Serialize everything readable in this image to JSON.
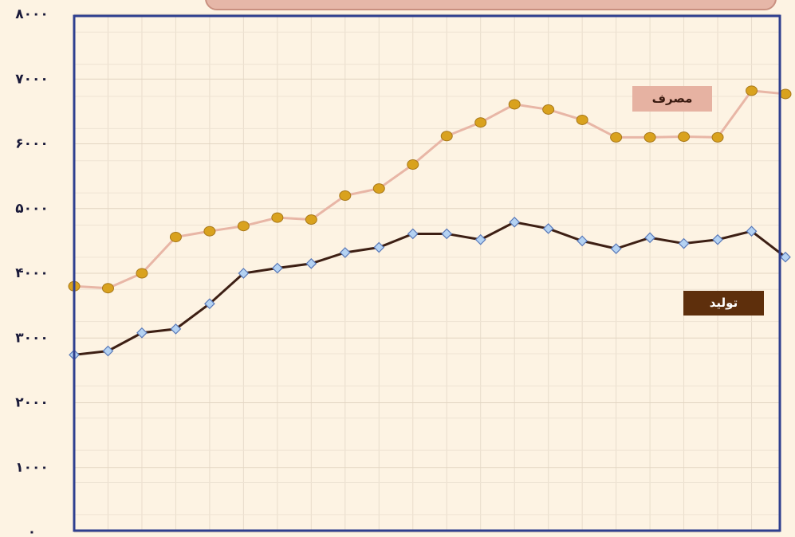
{
  "chart_data": {
    "type": "line",
    "categories": [
      null,
      null,
      null,
      null,
      null,
      null,
      null,
      null,
      null,
      null,
      null,
      null,
      null,
      null,
      null,
      null,
      null,
      null,
      null,
      null,
      null,
      null
    ],
    "series": [
      {
        "name": "مصرف",
        "color": "#e8b6a6",
        "marker_color": "#d9a21e",
        "marker": "circle",
        "values": [
          3800,
          3770,
          4000,
          4560,
          4650,
          4730,
          4860,
          4830,
          5200,
          5310,
          5680,
          6120,
          6330,
          6610,
          6530,
          6370,
          6100,
          6100,
          6110,
          6100,
          6820,
          6770
        ]
      },
      {
        "name": "تولید",
        "color": "#3d1f14",
        "marker_color": "#b4d2f2",
        "marker": "diamond",
        "values": [
          2740,
          2800,
          3080,
          3140,
          3530,
          4000,
          4080,
          4150,
          4320,
          4400,
          4610,
          4610,
          4520,
          4790,
          4690,
          4500,
          4380,
          4550,
          4460,
          4520,
          4650,
          4250
        ]
      }
    ],
    "ylim": [
      0,
      8000
    ],
    "yticks": [
      {
        "value": 0,
        "label": "۰"
      },
      {
        "value": 1000,
        "label": "۱۰۰۰"
      },
      {
        "value": 2000,
        "label": "۲۰۰۰"
      },
      {
        "value": 3000,
        "label": "۳۰۰۰"
      },
      {
        "value": 4000,
        "label": "۴۰۰۰"
      },
      {
        "value": 5000,
        "label": "۵۰۰۰"
      },
      {
        "value": 6000,
        "label": "۶۰۰۰"
      },
      {
        "value": 7000,
        "label": "۷۰۰۰"
      },
      {
        "value": 8000,
        "label": "۸۰۰۰"
      }
    ],
    "grid": true
  }
}
